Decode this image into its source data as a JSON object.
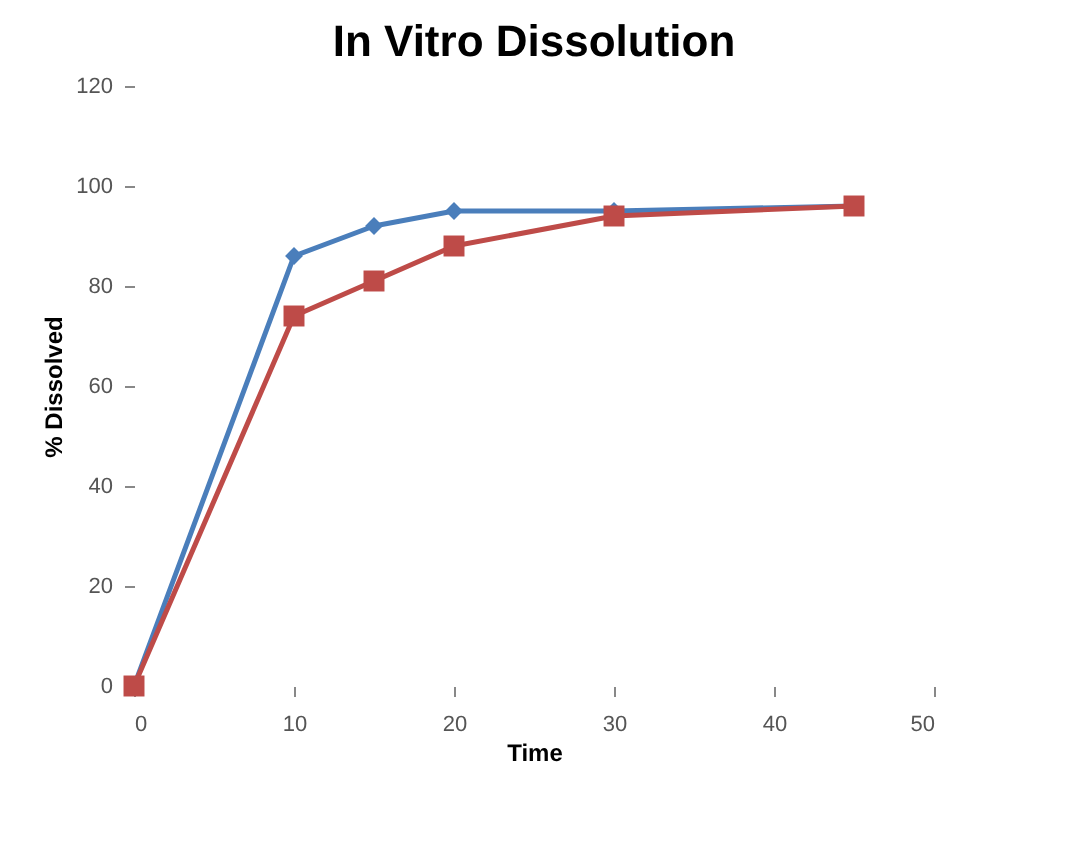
{
  "chart_data": {
    "type": "line",
    "title": "In Vitro Dissolution",
    "xlabel": "Time",
    "ylabel": "% Dissolved",
    "x": [
      0,
      10,
      15,
      20,
      30,
      45
    ],
    "series": [
      {
        "color": "#4a7ebb",
        "marker": "diamond",
        "values": [
          0,
          86,
          92,
          95,
          95,
          96
        ]
      },
      {
        "color": "#be4b48",
        "marker": "square",
        "values": [
          0,
          74,
          81,
          88,
          94,
          96
        ]
      }
    ],
    "xlim": [
      0,
      50
    ],
    "xticks": [
      0,
      10,
      20,
      30,
      40,
      50
    ],
    "ylim": [
      0,
      120
    ],
    "yticks": [
      0,
      20,
      40,
      60,
      80,
      100,
      120
    ],
    "grid": false
  }
}
